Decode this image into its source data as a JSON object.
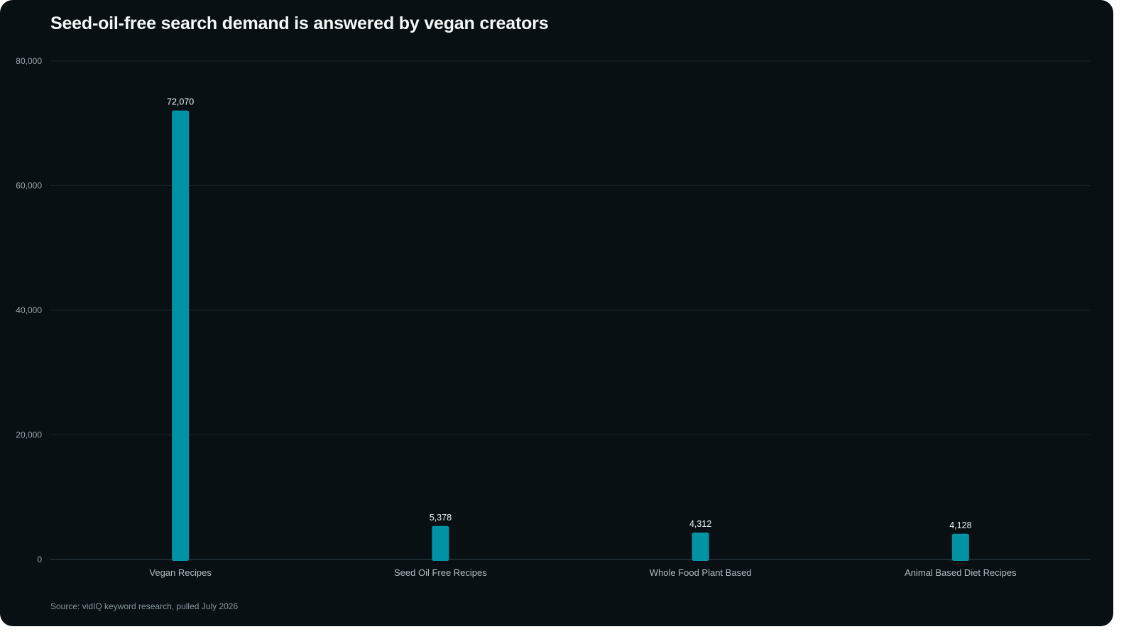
{
  "title": "Seed-oil-free search demand is answered by vegan creators",
  "source": "Source: vidIQ keyword research, pulled July 2026",
  "colors": {
    "background": "#081014",
    "bar": "#0192a4",
    "grid": "#16242a",
    "axis": "#26363d"
  },
  "chart_data": {
    "type": "bar",
    "categories": [
      "Vegan Recipes",
      "Seed Oil Free Recipes",
      "Whole Food Plant Based",
      "Animal Based Diet Recipes"
    ],
    "values": [
      72070,
      5378,
      4312,
      4128
    ],
    "value_labels": [
      "72,070",
      "5,378",
      "4,312",
      "4,128"
    ],
    "ylim": [
      0,
      80000
    ],
    "yticks": [
      0,
      20000,
      40000,
      60000,
      80000
    ],
    "ytick_labels": [
      "0",
      "20,000",
      "40,000",
      "60,000",
      "80,000"
    ],
    "xlabel": "",
    "ylabel": "",
    "grid": true,
    "legend": "none"
  }
}
